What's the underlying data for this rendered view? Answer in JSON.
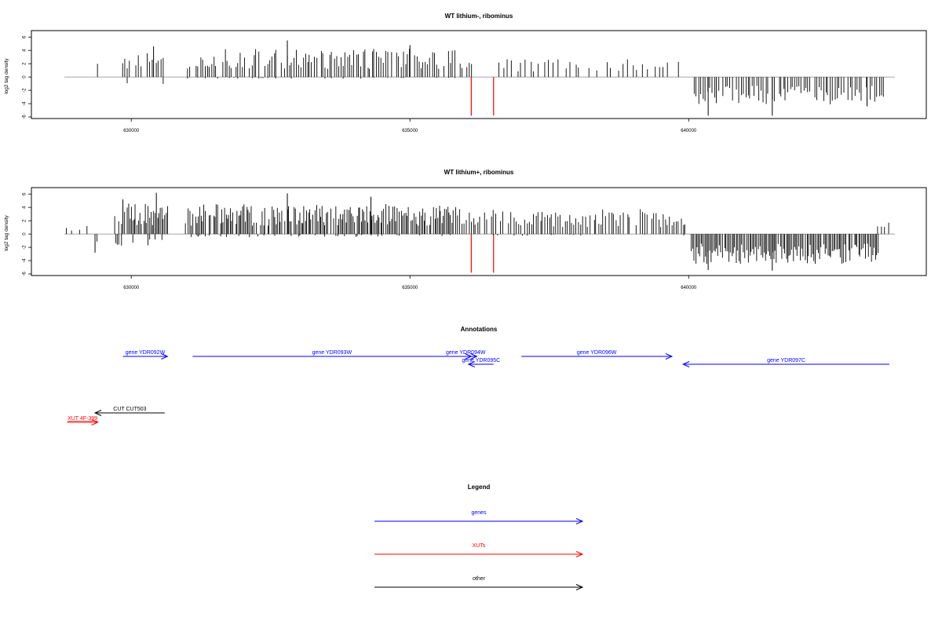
{
  "chart_data": [
    {
      "type": "bar",
      "title": "WT lithium-, ribominus",
      "xlabel": "",
      "ylabel": "log2 tag density",
      "xlim": [
        628800,
        643700
      ],
      "ylim": [
        -6,
        6.5
      ],
      "x_ticks": [
        "630000",
        "635000",
        "640000"
      ],
      "y_ticks": [
        "-6",
        "-4",
        "-2",
        "0",
        "2",
        "4",
        "6"
      ],
      "bar_color": "#000000",
      "highlight_color": "#ff0000",
      "series": [
        {
          "segments": [
            {
              "from": 629400,
              "to": 629400,
              "step": 40,
              "pos": 2.6,
              "neg": 0
            },
            {
              "from": 629850,
              "to": 630600,
              "step": 40,
              "pos": 3.2,
              "neg": -1.2
            },
            {
              "from": 631000,
              "to": 635800,
              "step": 40,
              "pos": 3.4,
              "neg": -0.2
            },
            {
              "from": 635900,
              "to": 636100,
              "step": 40,
              "pos": 2.4,
              "neg": 0
            },
            {
              "from": 636600,
              "to": 639800,
              "step": 80,
              "pos": 2.2,
              "neg": 0
            },
            {
              "from": 640100,
              "to": 643500,
              "step": 40,
              "pos": 0,
              "neg": -3.3
            }
          ],
          "peaks": [
            {
              "x": 632800,
              "y": 5.5
            },
            {
              "x": 630400,
              "y": 4.6
            },
            {
              "x": 635000,
              "y": 4.8
            },
            {
              "x": 641500,
              "y": -5.8
            },
            {
              "x": 640350,
              "y": -5.8
            },
            {
              "x": 643200,
              "y": -4.4
            }
          ],
          "highlights": [
            {
              "x": 636100,
              "y": -5.8
            },
            {
              "x": 636500,
              "y": -5.8
            }
          ]
        }
      ]
    },
    {
      "type": "bar",
      "title": "WT lithium+, ribominus",
      "xlabel": "",
      "ylabel": "log2 tag density",
      "xlim": [
        628800,
        643700
      ],
      "ylim": [
        -6,
        6.5
      ],
      "x_ticks": [
        "630000",
        "635000",
        "640000"
      ],
      "y_ticks": [
        "-6",
        "-4",
        "-2",
        "0",
        "2",
        "4",
        "6"
      ],
      "bar_color": "#000000",
      "highlight_color": "#ff0000",
      "series": [
        {
          "segments": [
            {
              "from": 628850,
              "to": 629400,
              "step": 110,
              "pos": 1.0,
              "neg": -1.4
            },
            {
              "from": 629700,
              "to": 630650,
              "step": 25,
              "pos": 3.8,
              "neg": -1.4
            },
            {
              "from": 630950,
              "to": 635850,
              "step": 25,
              "pos": 3.6,
              "neg": -0.4
            },
            {
              "from": 635900,
              "to": 639950,
              "step": 40,
              "pos": 3.0,
              "neg": -0.2
            },
            {
              "from": 640050,
              "to": 643400,
              "step": 25,
              "pos": 0,
              "neg": -3.6
            },
            {
              "from": 643400,
              "to": 643650,
              "step": 60,
              "pos": 1.4,
              "neg": -2.2
            }
          ],
          "peaks": [
            {
              "x": 630450,
              "y": 6.2
            },
            {
              "x": 632800,
              "y": 6.1
            },
            {
              "x": 634300,
              "y": 5.6
            },
            {
              "x": 629850,
              "y": 5.2
            },
            {
              "x": 641500,
              "y": -5.5
            },
            {
              "x": 640350,
              "y": -5.4
            },
            {
              "x": 629350,
              "y": -2.8
            }
          ],
          "highlights": [
            {
              "x": 636100,
              "y": -5.8
            },
            {
              "x": 636500,
              "y": -5.8
            }
          ]
        }
      ]
    }
  ],
  "annotations": {
    "title": "Annotations",
    "xlim": [
      628800,
      643700
    ],
    "items": [
      {
        "label": "gene YDR092W",
        "from": 629850,
        "to": 630650,
        "row": 0,
        "color": "#0000ff"
      },
      {
        "label": "gene YDR093W",
        "from": 631100,
        "to": 636100,
        "row": 0,
        "color": "#0000ff"
      },
      {
        "label": "gene YDR094W",
        "from": 635800,
        "to": 636200,
        "row": 0,
        "color": "#0000ff"
      },
      {
        "label": "gene YDR095C",
        "from": 636500,
        "to": 636050,
        "row": 1,
        "color": "#0000ff"
      },
      {
        "label": "gene YDR096W",
        "from": 637000,
        "to": 639700,
        "row": 0,
        "color": "#0000ff"
      },
      {
        "label": "gene YDR097C",
        "from": 643600,
        "to": 639900,
        "row": 2,
        "color": "#0000ff"
      },
      {
        "label": "CUT CUT503",
        "from": 630600,
        "to": 629350,
        "row": 6,
        "color": "#000000"
      },
      {
        "label": "XUT 4F-399",
        "from": 628850,
        "to": 629400,
        "row": 7,
        "color": "#ff0000",
        "underline": true
      }
    ]
  },
  "legend": {
    "title": "Legend",
    "items": [
      {
        "label": "genes",
        "color": "#0000ff"
      },
      {
        "label": "XUTs",
        "color": "#ff0000"
      },
      {
        "label": "other",
        "color": "#000000"
      }
    ]
  }
}
